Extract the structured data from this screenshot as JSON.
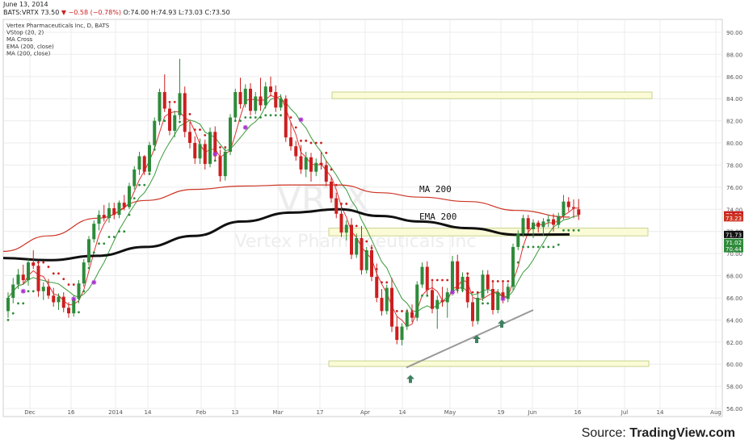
{
  "header": {
    "date": "June 13, 2014",
    "symbol": "BATS:VRTX",
    "last": "73.50",
    "change": "▼ −0.58 (−0.78%)",
    "ohlc": "O:74.00 H:74.93 L:73.03 C:73.50"
  },
  "legend": {
    "items": [
      "Vertex Pharmaceuticals Inc, D, BATS",
      "VStop (20, 2)",
      "MA Cross",
      "EMA (200, close)",
      "MA (200, close)"
    ]
  },
  "watermark": "VRTX",
  "watermark_sub": "Vertex Pharmaceuticals Inc",
  "source": {
    "prefix": "Source: ",
    "name": "TradingView.com"
  },
  "annotations": {
    "ma200": "MA 200",
    "ema200": "EMA 200"
  },
  "colors": {
    "up": "#2e8b3a",
    "down": "#cc1f1f",
    "ma200": "#cc3322",
    "ema200": "#111111",
    "fast_ma": "#dd3333",
    "slow_ma": "#3a9a3a",
    "zone_fill": "#fbfbd7",
    "zone_stroke": "#c9d48f",
    "trendline": "#999999",
    "arrow": "#3f8060",
    "cross": "#aa33cc"
  },
  "chart_data": {
    "type": "candlestick",
    "y_axis": {
      "min": 56,
      "max": 90,
      "ticks": [
        "56.00",
        "58.00",
        "60.00",
        "62.00",
        "64.00",
        "66.00",
        "68.00",
        "70.00",
        "72.00",
        "74.00",
        "76.00",
        "78.00",
        "80.00",
        "82.00",
        "84.00",
        "86.00",
        "88.00",
        "90.00"
      ]
    },
    "x_axis": {
      "tick_labels": [
        "Dec",
        "16",
        "2014",
        "14",
        "Feb",
        "13",
        "Mar",
        "17",
        "Apr",
        "14",
        "May",
        "19",
        "Jun",
        "16",
        "Jul",
        "14",
        "Aug"
      ]
    },
    "price_tags": [
      {
        "label": "73.50",
        "value": 73.5,
        "color": "#cc1f1f"
      },
      {
        "label": "73.23",
        "value": 73.23,
        "color": "#cc3322"
      },
      {
        "label": "71.73",
        "value": 71.73,
        "color": "#111111"
      },
      {
        "label": "71.02",
        "value": 71.02,
        "color": "#2e8b3a"
      },
      {
        "label": "70.44",
        "value": 70.44,
        "color": "#2e8b3a"
      }
    ],
    "candles": [
      [
        64.8,
        66.5,
        64.2,
        66.0
      ],
      [
        66.0,
        67.8,
        65.5,
        67.2
      ],
      [
        67.2,
        68.6,
        66.8,
        68.1
      ],
      [
        68.1,
        69.0,
        67.2,
        67.6
      ],
      [
        67.6,
        69.5,
        67.1,
        69.2
      ],
      [
        69.2,
        70.3,
        68.6,
        68.9
      ],
      [
        68.9,
        69.2,
        66.1,
        66.6
      ],
      [
        66.6,
        67.4,
        65.8,
        67.0
      ],
      [
        67.0,
        67.7,
        65.9,
        66.2
      ],
      [
        66.2,
        66.9,
        65.2,
        65.6
      ],
      [
        65.6,
        66.4,
        64.9,
        66.1
      ],
      [
        66.1,
        66.5,
        64.7,
        65.1
      ],
      [
        65.1,
        65.6,
        64.2,
        64.6
      ],
      [
        64.6,
        66.2,
        64.3,
        65.9
      ],
      [
        65.9,
        67.6,
        65.5,
        67.3
      ],
      [
        67.3,
        69.5,
        67.0,
        69.2
      ],
      [
        69.2,
        71.6,
        68.9,
        71.3
      ],
      [
        71.3,
        73.0,
        71.0,
        72.7
      ],
      [
        72.7,
        73.9,
        72.1,
        73.5
      ],
      [
        73.5,
        74.4,
        72.9,
        73.2
      ],
      [
        73.2,
        74.6,
        72.8,
        74.1
      ],
      [
        74.1,
        74.6,
        73.1,
        73.5
      ],
      [
        73.5,
        74.8,
        73.2,
        74.6
      ],
      [
        74.6,
        75.3,
        73.9,
        74.2
      ],
      [
        74.2,
        76.4,
        74.0,
        76.1
      ],
      [
        76.1,
        77.9,
        75.8,
        77.6
      ],
      [
        77.6,
        79.2,
        77.1,
        78.8
      ],
      [
        78.8,
        78.9,
        77.1,
        77.4
      ],
      [
        77.4,
        80.1,
        77.1,
        79.8
      ],
      [
        79.8,
        82.3,
        79.5,
        82.0
      ],
      [
        82.0,
        84.9,
        81.6,
        84.6
      ],
      [
        84.6,
        86.2,
        82.8,
        83.1
      ],
      [
        83.1,
        83.6,
        80.7,
        81.1
      ],
      [
        81.1,
        82.9,
        80.5,
        82.5
      ],
      [
        82.5,
        87.6,
        82.1,
        84.5
      ],
      [
        84.5,
        85.1,
        80.5,
        81.0
      ],
      [
        81.0,
        81.9,
        79.5,
        80.0
      ],
      [
        80.0,
        80.6,
        78.1,
        78.6
      ],
      [
        78.6,
        80.4,
        78.1,
        79.9
      ],
      [
        79.9,
        80.3,
        77.6,
        78.1
      ],
      [
        78.1,
        81.4,
        77.8,
        81.0
      ],
      [
        81.0,
        81.5,
        78.4,
        78.8
      ],
      [
        78.8,
        79.4,
        76.5,
        77.0
      ],
      [
        77.0,
        79.6,
        76.6,
        79.2
      ],
      [
        79.2,
        82.6,
        78.9,
        82.3
      ],
      [
        82.3,
        84.9,
        82.0,
        84.6
      ],
      [
        84.6,
        85.9,
        83.1,
        83.5
      ],
      [
        83.5,
        85.3,
        83.2,
        84.9
      ],
      [
        84.9,
        85.4,
        82.5,
        82.9
      ],
      [
        82.9,
        84.6,
        82.6,
        84.2
      ],
      [
        84.2,
        85.9,
        82.9,
        83.4
      ],
      [
        83.4,
        85.5,
        83.1,
        85.1
      ],
      [
        85.1,
        86.0,
        84.2,
        84.6
      ],
      [
        84.6,
        85.2,
        82.8,
        83.2
      ],
      [
        83.2,
        84.4,
        82.9,
        84.0
      ],
      [
        84.0,
        84.3,
        80.1,
        80.5
      ],
      [
        80.5,
        81.9,
        79.3,
        79.7
      ],
      [
        79.7,
        80.2,
        78.4,
        78.8
      ],
      [
        78.8,
        79.8,
        77.2,
        77.6
      ],
      [
        77.6,
        79.2,
        76.9,
        78.7
      ],
      [
        78.7,
        79.1,
        76.5,
        77.4
      ],
      [
        77.4,
        78.6,
        77.0,
        78.2
      ],
      [
        78.2,
        79.2,
        77.6,
        78.0
      ],
      [
        78.0,
        78.4,
        76.1,
        76.5
      ],
      [
        76.5,
        76.9,
        74.6,
        75.0
      ],
      [
        75.0,
        75.5,
        73.2,
        73.6
      ],
      [
        73.6,
        74.4,
        71.5,
        71.9
      ],
      [
        71.9,
        73.0,
        71.2,
        72.6
      ],
      [
        72.6,
        73.2,
        69.5,
        69.9
      ],
      [
        69.9,
        71.8,
        69.6,
        71.4
      ],
      [
        71.4,
        72.5,
        68.1,
        68.5
      ],
      [
        68.5,
        70.6,
        68.2,
        70.3
      ],
      [
        70.3,
        70.8,
        67.5,
        67.9
      ],
      [
        67.9,
        69.1,
        65.6,
        66.0
      ],
      [
        66.0,
        66.8,
        64.4,
        64.8
      ],
      [
        64.8,
        67.2,
        64.5,
        66.9
      ],
      [
        66.9,
        67.8,
        62.9,
        63.4
      ],
      [
        63.4,
        64.3,
        61.8,
        62.2
      ],
      [
        62.2,
        63.7,
        61.7,
        63.4
      ],
      [
        63.4,
        65.0,
        63.1,
        64.7
      ],
      [
        64.7,
        65.4,
        63.8,
        64.2
      ],
      [
        64.2,
        67.5,
        63.9,
        67.2
      ],
      [
        67.2,
        69.2,
        66.9,
        68.8
      ],
      [
        68.8,
        69.3,
        66.3,
        66.7
      ],
      [
        66.7,
        67.5,
        64.6,
        65.0
      ],
      [
        65.0,
        66.2,
        63.2,
        65.8
      ],
      [
        65.8,
        67.0,
        65.2,
        65.6
      ],
      [
        65.6,
        66.9,
        64.2,
        66.5
      ],
      [
        66.5,
        69.8,
        66.2,
        69.3
      ],
      [
        69.3,
        69.9,
        66.4,
        66.8
      ],
      [
        66.8,
        68.3,
        66.5,
        67.9
      ],
      [
        67.9,
        68.2,
        65.1,
        65.6
      ],
      [
        65.6,
        66.0,
        63.4,
        63.9
      ],
      [
        63.9,
        66.4,
        63.6,
        66.0
      ],
      [
        66.0,
        68.5,
        65.7,
        68.1
      ],
      [
        68.1,
        68.5,
        66.4,
        66.8
      ],
      [
        66.8,
        67.5,
        64.5,
        64.9
      ],
      [
        64.9,
        66.8,
        64.6,
        66.5
      ],
      [
        66.5,
        67.4,
        65.5,
        65.9
      ],
      [
        65.9,
        67.3,
        65.6,
        67.0
      ],
      [
        67.0,
        70.9,
        66.7,
        70.6
      ],
      [
        70.6,
        72.1,
        70.3,
        71.8
      ],
      [
        71.8,
        73.5,
        71.5,
        73.2
      ],
      [
        73.2,
        73.5,
        71.8,
        72.2
      ],
      [
        72.2,
        73.1,
        71.4,
        72.8
      ],
      [
        72.8,
        73.0,
        71.9,
        72.4
      ],
      [
        72.4,
        73.2,
        71.6,
        72.9
      ],
      [
        72.9,
        73.5,
        72.4,
        73.1
      ],
      [
        73.1,
        73.6,
        72.0,
        72.6
      ],
      [
        72.6,
        73.7,
        72.3,
        73.4
      ],
      [
        73.4,
        75.3,
        73.1,
        74.7
      ],
      [
        74.7,
        75.1,
        73.8,
        74.2
      ],
      [
        74.2,
        74.9,
        73.2,
        74.08
      ],
      [
        74.0,
        74.93,
        73.03,
        73.5
      ]
    ]
  }
}
